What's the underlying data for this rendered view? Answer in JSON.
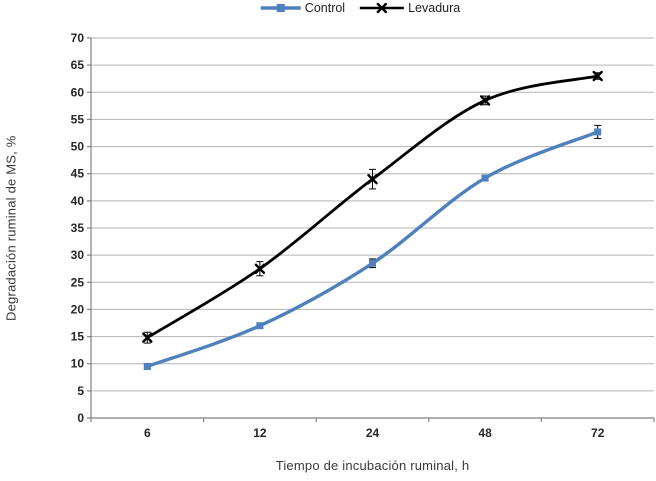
{
  "legend": {
    "items": [
      {
        "label": "Control",
        "color": "#4F81BD",
        "marker": "square"
      },
      {
        "label": "Levadura",
        "color": "#000000",
        "marker": "x"
      }
    ]
  },
  "chart_data": {
    "type": "line",
    "title": "",
    "xlabel": "Tiempo de incubación ruminal, h",
    "ylabel": "Degradación ruminal de MS, %",
    "categories": [
      "6",
      "12",
      "24",
      "48",
      "72"
    ],
    "ylim": [
      0,
      70
    ],
    "y_ticks": [
      0,
      5,
      10,
      15,
      20,
      25,
      30,
      35,
      40,
      45,
      50,
      55,
      60,
      65,
      70
    ],
    "grid": "horizontal-only",
    "legend_position": "top-center",
    "smoothed_lines": true,
    "error_bars": true,
    "series": [
      {
        "name": "Control",
        "color": "#4F81BD",
        "marker": "square",
        "values": [
          9.5,
          17.0,
          28.5,
          44.2,
          52.7
        ],
        "error": [
          0.5,
          0.5,
          0.8,
          0.5,
          1.2
        ]
      },
      {
        "name": "Levadura",
        "color": "#000000",
        "marker": "x",
        "values": [
          14.8,
          27.5,
          44.0,
          58.5,
          63.0
        ],
        "error": [
          1.0,
          1.3,
          1.8,
          0.8,
          0.6
        ]
      }
    ],
    "colors": {
      "gridline": "#b3b3b3",
      "axis": "#808080",
      "tick_label": "#262626",
      "axis_title": "#3a3a3a",
      "error_bar": "#000000",
      "background": "#ffffff"
    }
  }
}
